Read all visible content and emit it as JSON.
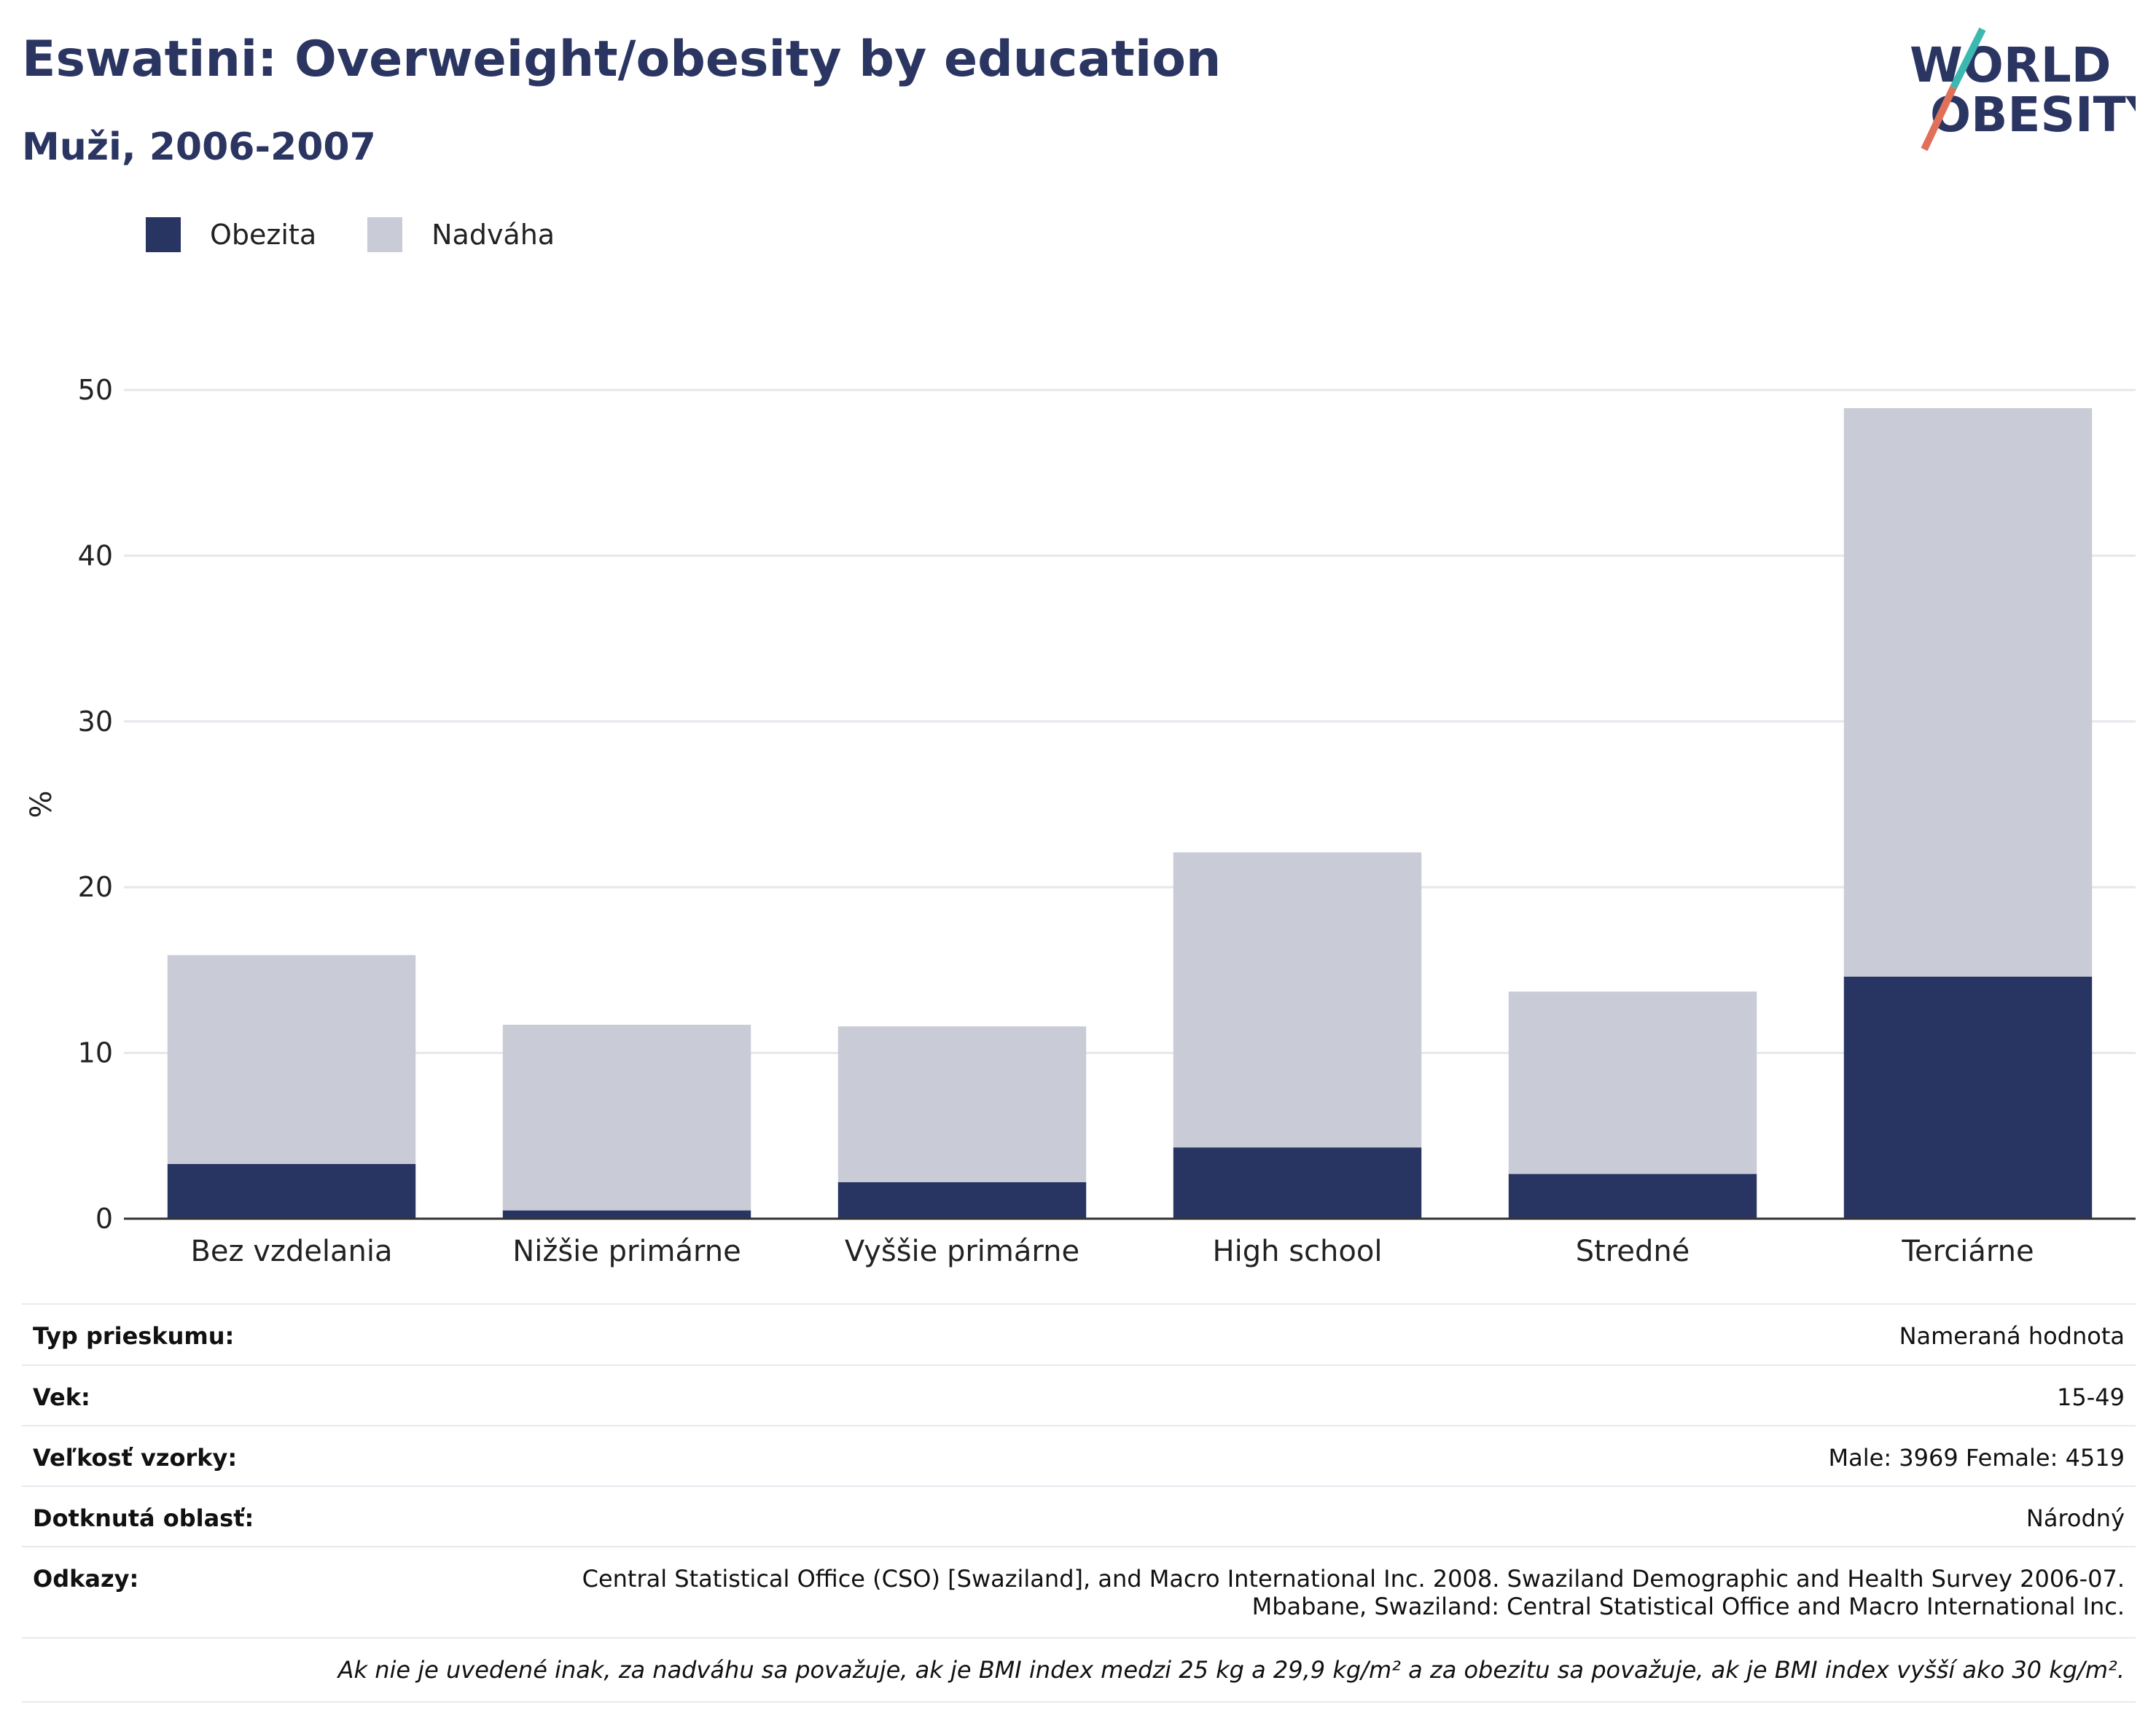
{
  "header": {
    "title": "Eswatini: Overweight/obesity by education",
    "subtitle": "Muži, 2006-2007"
  },
  "logo": {
    "line1": "WORLD",
    "line2": "OBESITY",
    "accent_teal": "#3bb8b0",
    "accent_coral": "#e0705a"
  },
  "colors": {
    "obesity": "#283462",
    "overweight": "#c9cbd6",
    "grid": "#e6e7ec",
    "axis": "#333333"
  },
  "chart_data": {
    "type": "bar",
    "stacked": true,
    "categories": [
      "Bez vzdelania",
      "Nižšie primárne",
      "Vyššie primárne",
      "High school",
      "Stredné",
      "Terciárne"
    ],
    "series": [
      {
        "name": "Obezita",
        "values": [
          3.3,
          0.5,
          2.2,
          4.3,
          2.7,
          14.6
        ]
      },
      {
        "name": "Nadváha",
        "values": [
          12.6,
          11.2,
          9.4,
          17.8,
          11.0,
          34.3
        ]
      }
    ],
    "ylabel": "%",
    "ylim": [
      0,
      50
    ],
    "yticks": [
      0,
      10,
      20,
      30,
      40,
      50
    ],
    "grid": true,
    "legend_position": "top-left"
  },
  "info": {
    "rows": [
      {
        "label": "Typ prieskumu:",
        "value": "Nameraná hodnota"
      },
      {
        "label": "Vek:",
        "value": "15-49"
      },
      {
        "label": "Veľkosť vzorky:",
        "value": "Male: 3969 Female: 4519"
      },
      {
        "label": "Dotknutá oblasť:",
        "value": "Národný"
      },
      {
        "label": "Odkazy:",
        "value": "Central Statistical Office (CSO) [Swaziland], and Macro International Inc. 2008. Swaziland Demographic and Health Survey 2006-07.",
        "value2": "Mbabane, Swaziland: Central Statistical Office and Macro International Inc."
      }
    ],
    "note": "Ak nie je uvedené inak, za nadváhu sa považuje, ak je BMI index medzi 25 kg a 29,9 kg/m² a za obezitu sa považuje, ak je BMI index vyšší ako 30 kg/m²."
  }
}
